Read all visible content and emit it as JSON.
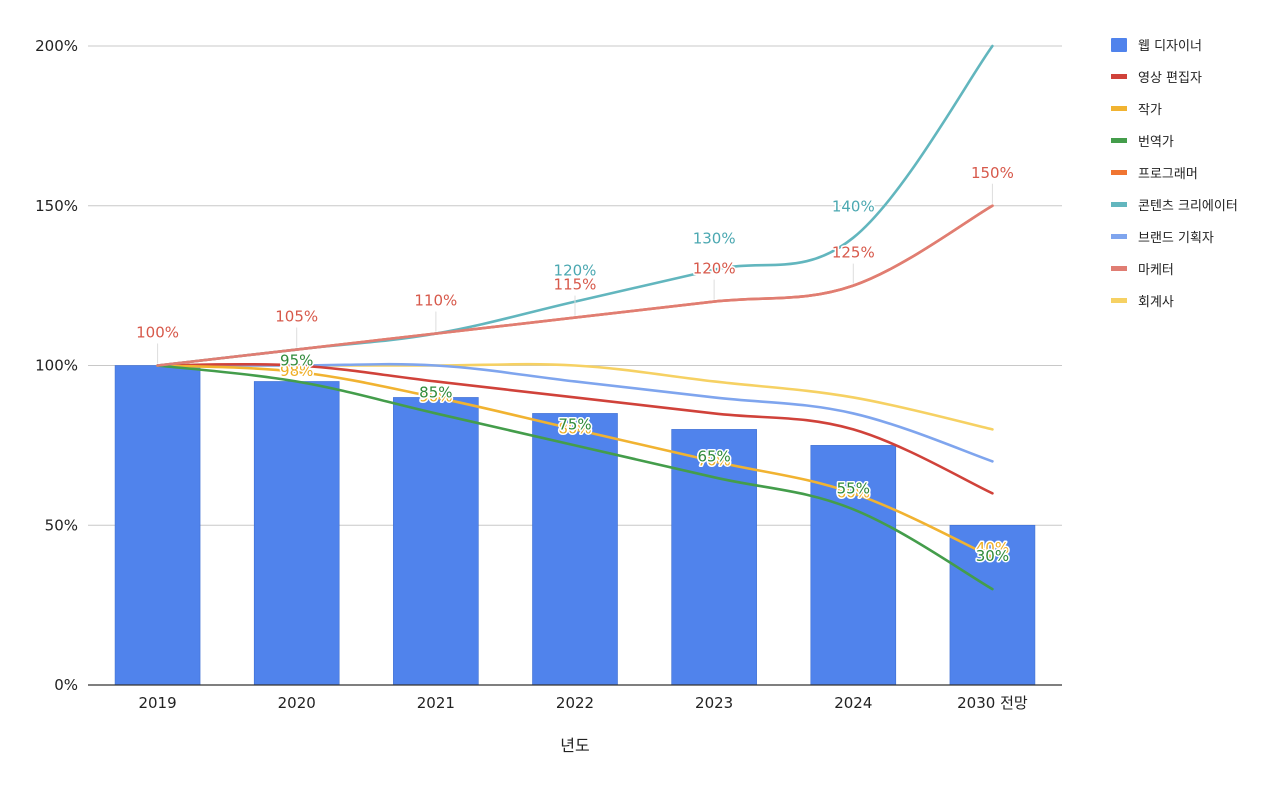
{
  "chart_data": {
    "type": "bar+line",
    "title": "",
    "xlabel": "년도",
    "ylabel": "",
    "categories": [
      "2019",
      "2020",
      "2021",
      "2022",
      "2023",
      "2024",
      "2030 전망"
    ],
    "yticks": [
      "0%",
      "50%",
      "100%",
      "150%",
      "200%"
    ],
    "ylim": [
      0,
      200
    ],
    "grid": true,
    "legend_position": "right",
    "series": [
      {
        "name": "웹 디자이너",
        "kind": "bar",
        "color": "#5083ec",
        "values": [
          100,
          95,
          90,
          85,
          80,
          75,
          50
        ]
      },
      {
        "name": "영상 편집자",
        "kind": "line",
        "color": "#d0423a",
        "values": [
          100,
          100,
          95,
          90,
          85,
          80,
          60
        ]
      },
      {
        "name": "작가",
        "kind": "line",
        "color": "#f1b331",
        "values": [
          100,
          98,
          90,
          80,
          70,
          60,
          40
        ],
        "labels": [
          "",
          "98%",
          "90%",
          "80%",
          "70%",
          "60%",
          "40%"
        ]
      },
      {
        "name": "번역가",
        "kind": "line",
        "color": "#449d4b",
        "values": [
          100,
          95,
          85,
          75,
          65,
          55,
          30
        ],
        "labels": [
          "",
          "95%",
          "85%",
          "75%",
          "65%",
          "55%",
          "30%"
        ]
      },
      {
        "name": "프로그래머",
        "kind": "line",
        "color": "#f07531",
        "values": [
          100,
          105,
          110,
          115,
          120,
          125,
          150
        ]
      },
      {
        "name": "콘텐츠 크리에이터",
        "kind": "line",
        "color": "#62b6be",
        "values": [
          100,
          105,
          110,
          120,
          130,
          140,
          200
        ],
        "labels": [
          "",
          "",
          "",
          "120%",
          "130%",
          "140%",
          ""
        ]
      },
      {
        "name": "브랜드 기획자",
        "kind": "line",
        "color": "#7fa5ee",
        "values": [
          100,
          100,
          100,
          95,
          90,
          85,
          70
        ]
      },
      {
        "name": "마케터",
        "kind": "line",
        "color": "#e07d73",
        "values": [
          100,
          105,
          110,
          115,
          120,
          125,
          150
        ],
        "labels": [
          "100%",
          "105%",
          "110%",
          "115%",
          "120%",
          "125%",
          "150%"
        ]
      },
      {
        "name": "회계사",
        "kind": "line",
        "color": "#f6d163",
        "values": [
          100,
          100,
          100,
          100,
          95,
          90,
          80
        ]
      }
    ]
  }
}
